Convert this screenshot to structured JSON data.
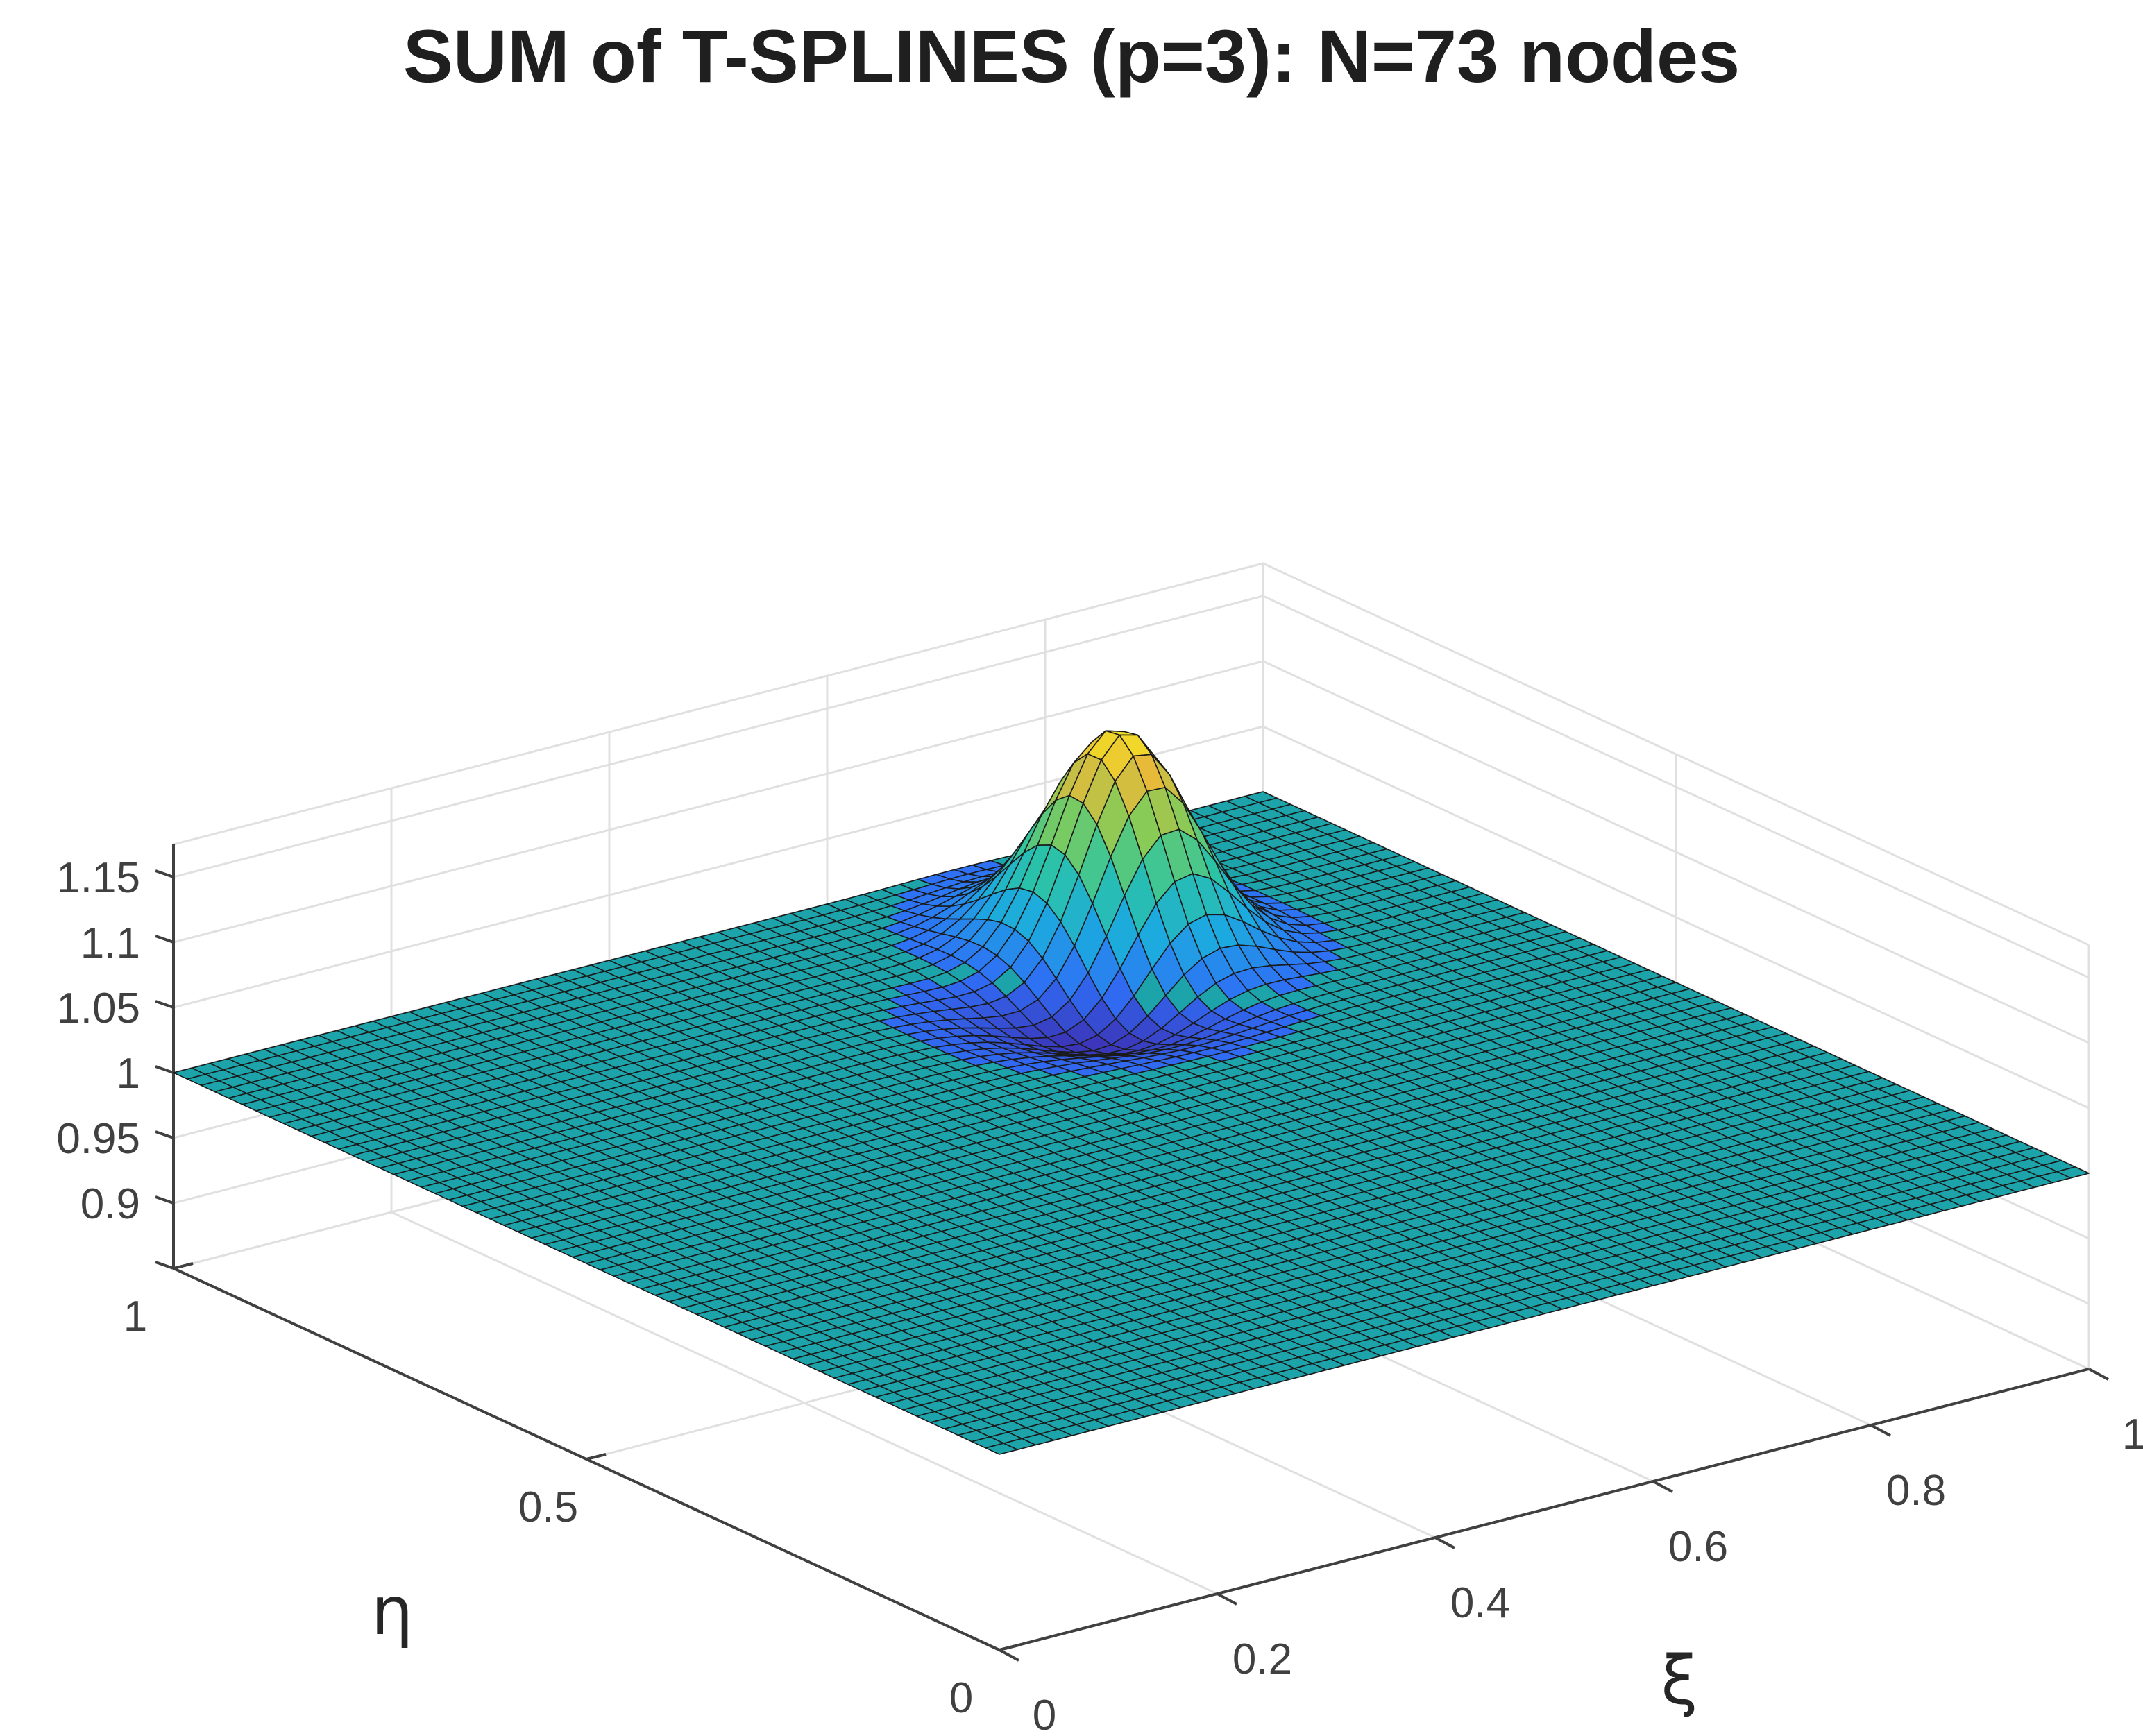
{
  "chart_data": {
    "type": "surface",
    "title": "SUM of T-SPLINES (p=3): N=73 nodes",
    "xlabel": "ξ",
    "ylabel": "η",
    "zlabel": "",
    "xlim": [
      0,
      1
    ],
    "ylim": [
      0,
      1
    ],
    "zlim": [
      0.85,
      1.175
    ],
    "xticks": [
      "0",
      "0.2",
      "0.4",
      "0.6",
      "0.8",
      "1"
    ],
    "yticks": [
      "0",
      "0.5",
      "1"
    ],
    "zticks": [
      "0.9",
      "0.95",
      "1",
      "1.05",
      "1.1",
      "1.15"
    ],
    "baseline_value": 1.0,
    "peak": {
      "xi": 0.72,
      "eta": 0.8,
      "value": 1.175
    },
    "trough": {
      "xi": 0.66,
      "eta": 0.72,
      "value": 0.965
    },
    "grid": true,
    "colormap": [
      "#3e26a8",
      "#2f6ef6",
      "#1caadf",
      "#2cc4a4",
      "#81cc59",
      "#e8ba3a",
      "#f9fb15"
    ],
    "flat_color": "#1da3aa",
    "edge_color": "#1a1a1a"
  }
}
